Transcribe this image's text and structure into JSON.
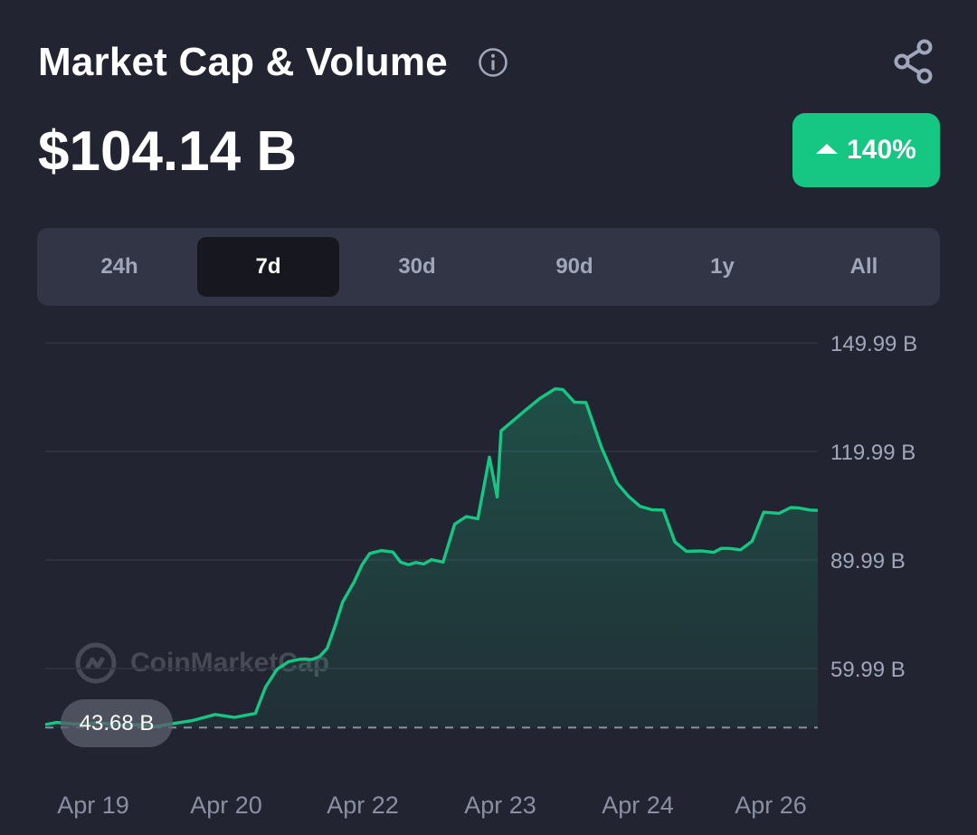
{
  "header": {
    "title": "Market Cap & Volume",
    "value": "$104.14 B",
    "change": "140%",
    "change_color": "#16c784"
  },
  "icons": {
    "info": "info-icon",
    "share": "share-icon",
    "change_direction": "caret-up-icon"
  },
  "tabs": [
    {
      "label": "24h",
      "active": false
    },
    {
      "label": "7d",
      "active": true
    },
    {
      "label": "30d",
      "active": false
    },
    {
      "label": "90d",
      "active": false
    },
    {
      "label": "1y",
      "active": false
    },
    {
      "label": "All",
      "active": false
    }
  ],
  "watermark": "CoinMarketCap",
  "chart_data": {
    "type": "area",
    "start_value_label": "43.68 B",
    "start_value": 43.68,
    "y_ticks": [
      {
        "value": 149.99,
        "label": "149.99 B"
      },
      {
        "value": 119.99,
        "label": "119.99 B"
      },
      {
        "value": 89.99,
        "label": "89.99 B"
      },
      {
        "value": 59.99,
        "label": "59.99 B"
      }
    ],
    "x_ticks": [
      "Apr 19",
      "Apr 20",
      "Apr 22",
      "Apr 23",
      "Apr 24",
      "Apr 26"
    ],
    "ylim": [
      43.68,
      149.99
    ],
    "series": [
      {
        "line_color": "#16c784",
        "x": [
          0,
          0.015,
          0.04,
          0.07,
          0.1,
          0.125,
          0.14,
          0.16,
          0.19,
          0.22,
          0.245,
          0.26,
          0.272,
          0.285,
          0.3,
          0.315,
          0.33,
          0.345,
          0.355,
          0.365,
          0.375,
          0.385,
          0.4,
          0.41,
          0.42,
          0.435,
          0.45,
          0.46,
          0.47,
          0.48,
          0.49,
          0.5,
          0.515,
          0.53,
          0.545,
          0.56,
          0.575,
          0.585,
          0.59,
          0.605,
          0.62,
          0.64,
          0.66,
          0.67,
          0.685,
          0.7,
          0.72,
          0.74,
          0.755,
          0.77,
          0.785,
          0.8,
          0.815,
          0.83,
          0.85,
          0.865,
          0.875,
          0.885,
          0.9,
          0.915,
          0.93,
          0.95,
          0.965,
          0.975,
          0.99,
          1.0
        ],
        "y": [
          44.5,
          45.1,
          44.6,
          45.0,
          44.3,
          44.5,
          43.9,
          44.6,
          45.6,
          47.3,
          46.5,
          47.1,
          47.6,
          54.8,
          59.8,
          61.9,
          62.6,
          62.5,
          63.3,
          65.6,
          71.7,
          78.4,
          84.0,
          88.6,
          91.8,
          92.6,
          92.2,
          89.4,
          88.7,
          89.3,
          88.9,
          90.1,
          89.4,
          99.9,
          102.0,
          101.4,
          118.4,
          107.4,
          125.7,
          128.4,
          131.1,
          134.6,
          137.3,
          137.1,
          133.6,
          133.5,
          121.1,
          111.3,
          107.6,
          104.8,
          103.9,
          103.8,
          95.0,
          92.4,
          92.5,
          92.1,
          93.2,
          93.2,
          92.8,
          95.2,
          103.2,
          102.9,
          104.5,
          104.4,
          103.8,
          103.7
        ]
      }
    ]
  }
}
